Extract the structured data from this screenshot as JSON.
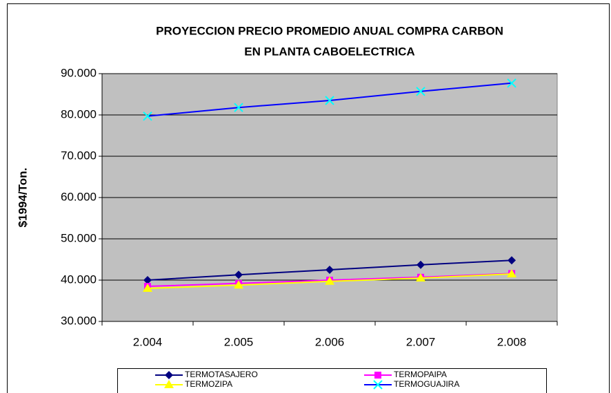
{
  "chart_data": {
    "type": "line",
    "title": [
      "PROYECCION PRECIO PROMEDIO ANUAL COMPRA CARBON",
      "EN PLANTA CABOELECTRICA"
    ],
    "y_label": "$1994/Ton.",
    "categories": [
      "2.004",
      "2.005",
      "2.006",
      "2.007",
      "2.008"
    ],
    "ylim": [
      30000,
      90000
    ],
    "yticks": [
      {
        "value": 30000,
        "label": "30.000"
      },
      {
        "value": 40000,
        "label": "40.000"
      },
      {
        "value": 50000,
        "label": "50.000"
      },
      {
        "value": 60000,
        "label": "60.000"
      },
      {
        "value": 70000,
        "label": "70.000"
      },
      {
        "value": 80000,
        "label": "80.000"
      },
      {
        "value": 90000,
        "label": "90.000"
      }
    ],
    "grid": true,
    "plot_background": "#c0c0c0",
    "legend": "bottom",
    "series": [
      {
        "name": "TERMOTASAJERO",
        "color": "#000080",
        "marker": "diamond",
        "marker_color": "#000080",
        "values": [
          40000,
          41300,
          42500,
          43700,
          44800
        ]
      },
      {
        "name": "TERMOPAIPA",
        "color": "#ff00ff",
        "marker": "square",
        "marker_color": "#ff00ff",
        "values": [
          38500,
          39200,
          40000,
          40700,
          41600
        ]
      },
      {
        "name": "TERMOZIPA",
        "color": "#ffff00",
        "marker": "triangle",
        "marker_color": "#ffff00",
        "values": [
          38000,
          38800,
          39700,
          40500,
          41500
        ]
      },
      {
        "name": "TERMOGUAJIRA",
        "color": "#0000ff",
        "marker": "x",
        "marker_color": "#00ffff",
        "values": [
          79700,
          81800,
          83500,
          85700,
          87700
        ]
      }
    ]
  }
}
